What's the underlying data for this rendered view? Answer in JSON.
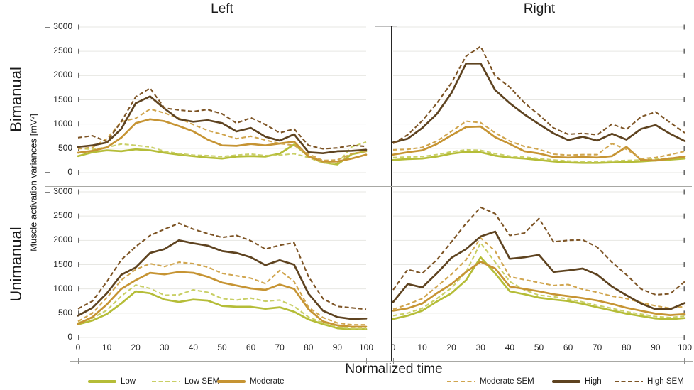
{
  "titles": {
    "column_left": "Left",
    "column_right": "Right",
    "row_top": "Bimanual",
    "row_bottom": "Unimanual",
    "y_axis": "Muscle activation variances [mV²]",
    "x_axis": "Normalized time"
  },
  "colors": {
    "low": "#b5bd38",
    "low_sem": "#c9cf66",
    "moderate": "#c69433",
    "moderate_sem": "#d0a54e",
    "high": "#5e4320",
    "high_sem": "#7d5425",
    "grid": "#e7e7e3",
    "side_tick": "#595959",
    "axis_line": "#a8a8a4",
    "divider": "#262626"
  },
  "legend": [
    {
      "label": "Low",
      "color": "low",
      "dashed": false
    },
    {
      "label": "Low SEM",
      "color": "low_sem",
      "dashed": true
    },
    {
      "label": "Moderate",
      "color": "moderate",
      "dashed": false
    },
    {
      "label": "Moderate SEM",
      "color": "moderate_sem",
      "dashed": true
    },
    {
      "label": "High",
      "color": "high",
      "dashed": false
    },
    {
      "label": "High SEM",
      "color": "high_sem",
      "dashed": true
    }
  ],
  "chart_data": [
    {
      "type": "line",
      "group_row": "Bimanual",
      "group_col": "Left",
      "ylim": [
        0,
        3000
      ],
      "y_ticks": [
        0,
        500,
        1000,
        1500,
        2000,
        2500,
        3000
      ],
      "x_ticks": [
        0,
        10,
        20,
        30,
        40,
        50,
        60,
        70,
        80,
        90,
        100
      ],
      "grid": true,
      "side_ticks": "left",
      "show_y_labels": true,
      "show_x_labels": false,
      "x": [
        0,
        5,
        10,
        15,
        20,
        25,
        30,
        35,
        40,
        45,
        50,
        55,
        60,
        65,
        70,
        75,
        80,
        85,
        90,
        95,
        100
      ],
      "series": [
        {
          "name": "Low",
          "color": "low",
          "dashed": false,
          "values": [
            340,
            420,
            460,
            440,
            480,
            460,
            410,
            370,
            340,
            310,
            290,
            330,
            340,
            330,
            390,
            580,
            340,
            210,
            170,
            380,
            440
          ]
        },
        {
          "name": "Low SEM",
          "color": "low_sem",
          "dashed": true,
          "values": [
            500,
            480,
            520,
            590,
            560,
            530,
            440,
            390,
            360,
            350,
            330,
            360,
            380,
            350,
            360,
            390,
            310,
            200,
            190,
            530,
            630
          ]
        },
        {
          "name": "Moderate",
          "color": "moderate",
          "dashed": false,
          "values": [
            410,
            450,
            520,
            720,
            1020,
            1100,
            1060,
            960,
            850,
            680,
            560,
            550,
            590,
            560,
            600,
            640,
            330,
            230,
            230,
            290,
            370
          ]
        },
        {
          "name": "Moderate SEM",
          "color": "moderate_sem",
          "dashed": true,
          "values": [
            490,
            520,
            700,
            1050,
            1120,
            1310,
            1230,
            1120,
            990,
            870,
            790,
            700,
            750,
            670,
            600,
            560,
            380,
            250,
            260,
            390,
            440
          ]
        },
        {
          "name": "High",
          "color": "high",
          "dashed": false,
          "values": [
            530,
            560,
            620,
            900,
            1430,
            1570,
            1320,
            1100,
            1050,
            1080,
            1020,
            850,
            920,
            740,
            660,
            790,
            420,
            400,
            440,
            450,
            470
          ]
        },
        {
          "name": "High SEM",
          "color": "high_sem",
          "dashed": true,
          "values": [
            720,
            760,
            640,
            1050,
            1560,
            1740,
            1330,
            1290,
            1260,
            1300,
            1210,
            1020,
            1130,
            990,
            820,
            900,
            560,
            490,
            510,
            560,
            540
          ]
        }
      ]
    },
    {
      "type": "line",
      "group_row": "Bimanual",
      "group_col": "Right",
      "ylim": [
        0,
        3000
      ],
      "y_ticks": [
        0,
        500,
        1000,
        1500,
        2000,
        2500,
        3000
      ],
      "x_ticks": [
        0,
        10,
        20,
        30,
        40,
        50,
        60,
        70,
        80,
        90,
        100
      ],
      "grid": true,
      "side_ticks": "right",
      "show_y_labels": false,
      "show_x_labels": false,
      "x": [
        0,
        5,
        10,
        15,
        20,
        25,
        30,
        35,
        40,
        45,
        50,
        55,
        60,
        65,
        70,
        75,
        80,
        85,
        90,
        95,
        100
      ],
      "series": [
        {
          "name": "Low",
          "color": "low",
          "dashed": false,
          "values": [
            260,
            280,
            290,
            330,
            390,
            430,
            420,
            350,
            310,
            290,
            260,
            230,
            210,
            200,
            200,
            210,
            220,
            230,
            250,
            270,
            290
          ]
        },
        {
          "name": "Low SEM",
          "color": "low_sem",
          "dashed": true,
          "values": [
            310,
            320,
            330,
            370,
            430,
            470,
            460,
            390,
            340,
            320,
            290,
            260,
            240,
            230,
            230,
            240,
            250,
            260,
            280,
            300,
            320
          ]
        },
        {
          "name": "Moderate",
          "color": "moderate",
          "dashed": false,
          "values": [
            370,
            420,
            460,
            590,
            770,
            940,
            950,
            730,
            590,
            440,
            395,
            320,
            310,
            320,
            310,
            340,
            530,
            260,
            250,
            290,
            330
          ]
        },
        {
          "name": "Moderate SEM",
          "color": "moderate_sem",
          "dashed": true,
          "values": [
            470,
            480,
            520,
            650,
            850,
            1060,
            1030,
            820,
            650,
            540,
            480,
            380,
            360,
            370,
            370,
            600,
            480,
            290,
            310,
            370,
            440
          ]
        },
        {
          "name": "High",
          "color": "high",
          "dashed": false,
          "values": [
            620,
            700,
            920,
            1210,
            1640,
            2250,
            2250,
            1700,
            1430,
            1200,
            1000,
            810,
            670,
            740,
            660,
            800,
            680,
            900,
            980,
            800,
            650
          ]
        },
        {
          "name": "High SEM",
          "color": "high_sem",
          "dashed": true,
          "values": [
            600,
            780,
            1070,
            1430,
            1850,
            2400,
            2600,
            1990,
            1760,
            1440,
            1190,
            920,
            790,
            810,
            780,
            1000,
            890,
            1150,
            1250,
            1030,
            820
          ]
        }
      ]
    },
    {
      "type": "line",
      "group_row": "Unimanual",
      "group_col": "Left",
      "ylim": [
        0,
        3000
      ],
      "y_ticks": [
        0,
        500,
        1000,
        1500,
        2000,
        2500,
        3000
      ],
      "x_ticks": [
        0,
        10,
        20,
        30,
        40,
        50,
        60,
        70,
        80,
        90,
        100
      ],
      "grid": true,
      "side_ticks": "left",
      "show_y_labels": true,
      "show_x_labels": true,
      "x": [
        0,
        5,
        10,
        15,
        20,
        25,
        30,
        35,
        40,
        45,
        50,
        55,
        60,
        65,
        70,
        75,
        80,
        85,
        90,
        95,
        100
      ],
      "series": [
        {
          "name": "Low",
          "color": "low",
          "dashed": false,
          "values": [
            270,
            350,
            480,
            700,
            950,
            910,
            780,
            730,
            780,
            760,
            650,
            630,
            630,
            590,
            620,
            530,
            370,
            275,
            190,
            165,
            170
          ]
        },
        {
          "name": "Low SEM",
          "color": "low_sem",
          "dashed": true,
          "values": [
            300,
            400,
            560,
            850,
            1080,
            1010,
            870,
            880,
            980,
            930,
            800,
            770,
            810,
            745,
            770,
            640,
            420,
            300,
            220,
            185,
            185
          ]
        },
        {
          "name": "Moderate",
          "color": "moderate",
          "dashed": false,
          "values": [
            280,
            420,
            680,
            1000,
            1180,
            1330,
            1300,
            1350,
            1330,
            1250,
            1130,
            1070,
            1010,
            980,
            1090,
            1000,
            580,
            330,
            250,
            220,
            220
          ]
        },
        {
          "name": "Moderate SEM",
          "color": "moderate_sem",
          "dashed": true,
          "values": [
            330,
            500,
            820,
            1180,
            1400,
            1520,
            1460,
            1550,
            1520,
            1450,
            1320,
            1270,
            1220,
            1110,
            1380,
            1150,
            620,
            410,
            300,
            260,
            260
          ]
        },
        {
          "name": "High",
          "color": "high",
          "dashed": false,
          "values": [
            450,
            610,
            910,
            1290,
            1440,
            1740,
            1820,
            2000,
            1940,
            1890,
            1780,
            1740,
            1650,
            1490,
            1590,
            1500,
            900,
            550,
            420,
            380,
            390
          ]
        },
        {
          "name": "High SEM",
          "color": "high_sem",
          "dashed": true,
          "values": [
            590,
            750,
            1150,
            1600,
            1870,
            2100,
            2230,
            2350,
            2230,
            2140,
            2060,
            2100,
            1990,
            1820,
            1900,
            1950,
            1250,
            800,
            640,
            610,
            580
          ]
        }
      ]
    },
    {
      "type": "line",
      "group_row": "Unimanual",
      "group_col": "Right",
      "ylim": [
        0,
        3000
      ],
      "y_ticks": [
        0,
        500,
        1000,
        1500,
        2000,
        2500,
        3000
      ],
      "x_ticks": [
        0,
        10,
        20,
        30,
        40,
        50,
        60,
        70,
        80,
        90,
        100
      ],
      "grid": true,
      "side_ticks": "right",
      "show_y_labels": false,
      "show_x_labels": true,
      "x": [
        0,
        5,
        10,
        15,
        20,
        25,
        30,
        35,
        40,
        45,
        50,
        55,
        60,
        65,
        70,
        75,
        80,
        85,
        90,
        95,
        100
      ],
      "series": [
        {
          "name": "Low",
          "color": "low",
          "dashed": false,
          "values": [
            380,
            450,
            550,
            740,
            910,
            1180,
            1650,
            1320,
            950,
            890,
            820,
            780,
            750,
            690,
            620,
            555,
            490,
            440,
            390,
            375,
            400
          ]
        },
        {
          "name": "Low SEM",
          "color": "low_sem",
          "dashed": true,
          "values": [
            450,
            500,
            600,
            800,
            1020,
            1350,
            1950,
            1550,
            1150,
            980,
            870,
            840,
            790,
            730,
            660,
            600,
            530,
            480,
            430,
            410,
            440
          ]
        },
        {
          "name": "Moderate",
          "color": "moderate",
          "dashed": false,
          "values": [
            550,
            600,
            700,
            910,
            1100,
            1350,
            1560,
            1420,
            1050,
            1000,
            950,
            890,
            850,
            810,
            760,
            690,
            610,
            550,
            490,
            460,
            480
          ]
        },
        {
          "name": "Moderate SEM",
          "color": "moderate_sem",
          "dashed": true,
          "values": [
            580,
            680,
            800,
            1050,
            1300,
            1600,
            2050,
            1780,
            1250,
            1190,
            1130,
            1070,
            1090,
            990,
            930,
            850,
            800,
            720,
            650,
            600,
            640
          ]
        },
        {
          "name": "High",
          "color": "high",
          "dashed": false,
          "values": [
            730,
            1100,
            1030,
            1320,
            1640,
            1820,
            2080,
            2180,
            1620,
            1650,
            1700,
            1350,
            1380,
            1420,
            1290,
            1050,
            870,
            700,
            580,
            580,
            710
          ]
        },
        {
          "name": "High SEM",
          "color": "high_sem",
          "dashed": true,
          "values": [
            980,
            1400,
            1320,
            1600,
            1970,
            2350,
            2680,
            2550,
            2100,
            2150,
            2450,
            1970,
            2000,
            2010,
            1860,
            1550,
            1290,
            1000,
            880,
            900,
            1150
          ]
        }
      ]
    }
  ]
}
